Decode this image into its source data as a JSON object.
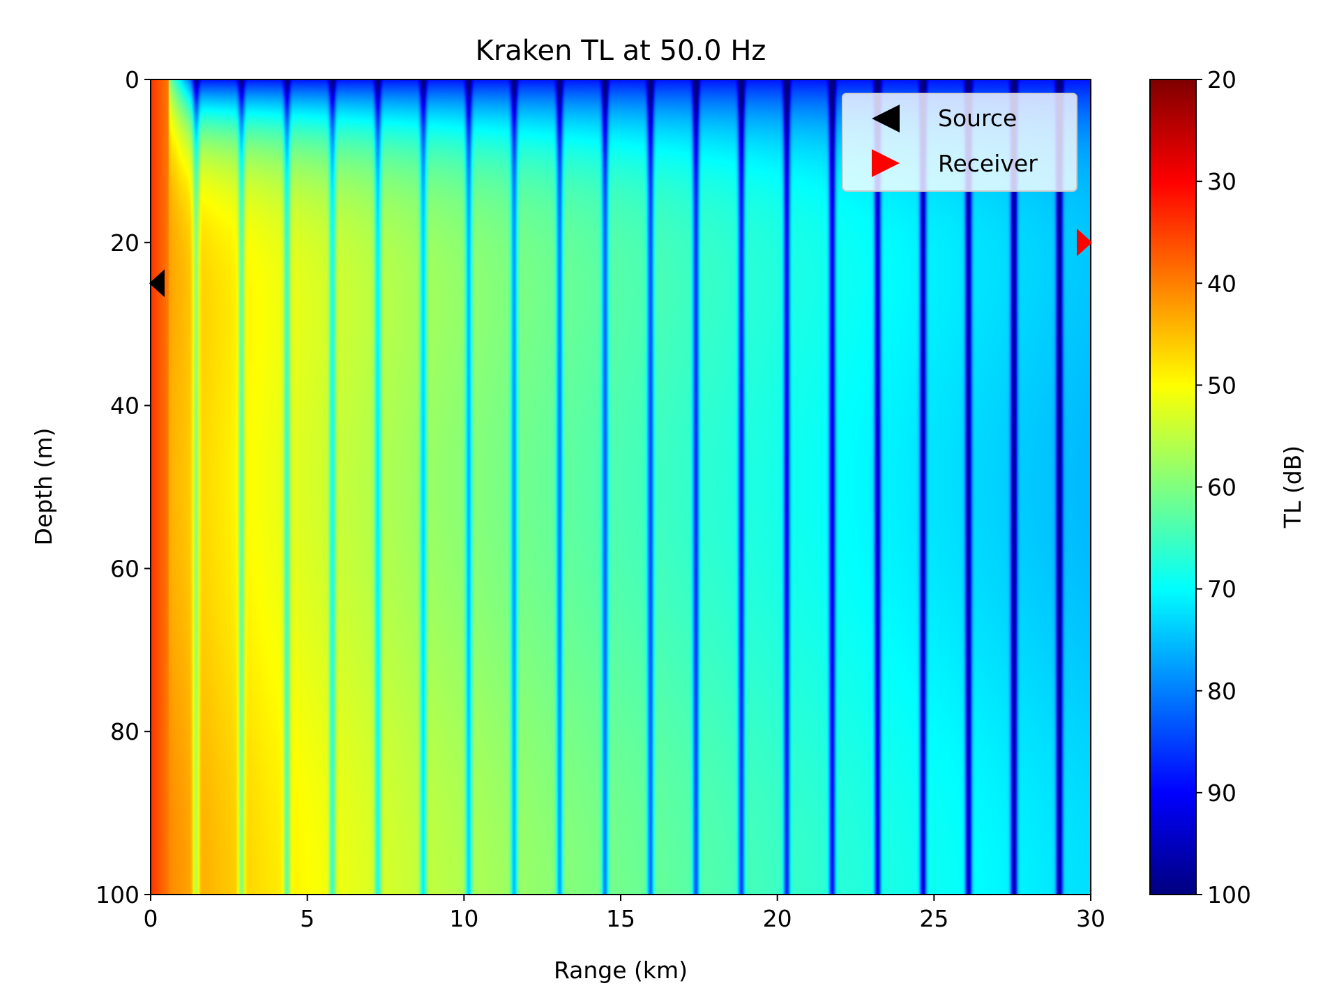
{
  "chart_data": {
    "type": "heatmap",
    "title": "Kraken TL at 50.0 Hz",
    "xlabel": "Range (km)",
    "ylabel": "Depth (m)",
    "xlim": [
      0,
      30
    ],
    "ylim": [
      100,
      0
    ],
    "y_axis_inverted": true,
    "xticks": [
      0,
      5,
      10,
      15,
      20,
      25,
      30
    ],
    "yticks": [
      0,
      20,
      40,
      60,
      80,
      100
    ],
    "colormap": "jet",
    "colorbar": {
      "label": "TL (dB)",
      "range": [
        20,
        100
      ],
      "reversed": true,
      "ticks": [
        20,
        30,
        40,
        50,
        60,
        70,
        80,
        90,
        100
      ]
    },
    "field_summary": {
      "near_source_tl_db": 38,
      "mid_range_tl_db_at_10km": 62,
      "far_range_tl_db_at_30km": 74,
      "surface_layer_tl_db": 90,
      "interference_nulls_tl_db": 92,
      "approx_null_spacing_km": 1.45
    },
    "markers": [
      {
        "name": "Source",
        "range_km": 0.2,
        "depth_m": 25,
        "color": "#000000",
        "shape": "left-triangle"
      },
      {
        "name": "Receiver",
        "range_km": 29.8,
        "depth_m": 20,
        "color": "#ff0000",
        "shape": "right-triangle"
      }
    ],
    "legend": {
      "position": "top-right",
      "entries": [
        "Source",
        "Receiver"
      ]
    }
  }
}
